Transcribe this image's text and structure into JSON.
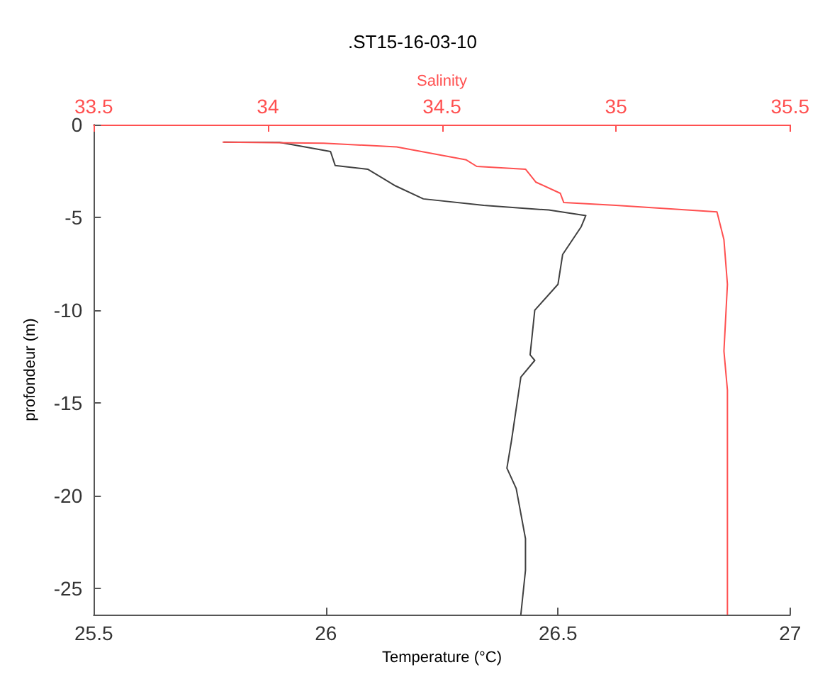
{
  "chart_data": {
    "type": "line",
    "title": ".ST15-16-03-10",
    "xlabel": "Temperature (°C)",
    "x2label": "Salinity",
    "ylabel": "profondeur (m)",
    "xlim": [
      25.5,
      27
    ],
    "xticks": [
      25.5,
      26,
      26.5,
      27
    ],
    "x2lim": [
      33.5,
      35.5
    ],
    "x2ticks": [
      33.5,
      34,
      34.5,
      35,
      35.5
    ],
    "ylim": [
      -26.4,
      0
    ],
    "yticks": [
      0,
      -5,
      -10,
      -15,
      -20,
      -25
    ],
    "marker": "none",
    "line_style": "solid",
    "series": [
      {
        "color": "#404040",
        "x": [
          25.78,
          25.9,
          26.01,
          26.02,
          26.09,
          26.15,
          26.21,
          26.34,
          26.48,
          26.56,
          26.55,
          26.51,
          26.5,
          26.45,
          26.44,
          26.45,
          26.42,
          26.4,
          26.39,
          26.41,
          26.43,
          26.43,
          26.42
        ],
        "values": [
          -0.94,
          -0.95,
          -1.45,
          -2.2,
          -2.4,
          -3.3,
          -4.0,
          -4.35,
          -4.6,
          -4.9,
          -5.5,
          -7.0,
          -8.6,
          -10.0,
          -12.4,
          -12.7,
          -13.6,
          -17.0,
          -18.5,
          -19.6,
          -22.3,
          -24.0,
          -26.4
        ]
      },
      {
        "color": "#ff5050",
        "axis": "x2",
        "x": [
          33.87,
          34.16,
          34.37,
          34.57,
          34.6,
          34.74,
          34.77,
          34.84,
          34.85,
          35.0,
          35.29,
          35.31,
          35.32,
          35.31,
          35.32,
          35.32
        ],
        "values": [
          -0.94,
          -1.0,
          -1.2,
          -1.9,
          -2.25,
          -2.4,
          -3.1,
          -3.7,
          -4.2,
          -4.35,
          -4.7,
          -6.2,
          -8.6,
          -12.2,
          -14.3,
          -26.4
        ]
      }
    ]
  }
}
